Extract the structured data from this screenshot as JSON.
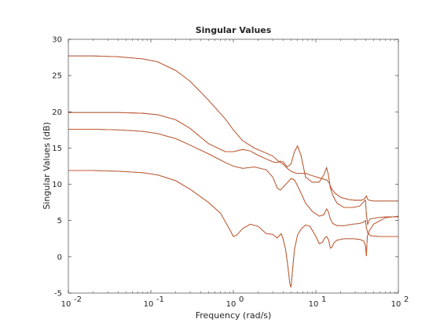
{
  "chart_data": {
    "type": "line",
    "title": "Singular Values",
    "xlabel": "Frequency (rad/s)",
    "ylabel": "Singular Values (dB)",
    "xscale": "log",
    "xlim": [
      0.01,
      100
    ],
    "ylim": [
      -5,
      30
    ],
    "xticks": [
      {
        "value": 0.01,
        "base": "10",
        "exp": "-2"
      },
      {
        "value": 0.1,
        "base": "10",
        "exp": "-1"
      },
      {
        "value": 1,
        "base": "10",
        "exp": "0"
      },
      {
        "value": 10,
        "base": "10",
        "exp": "1"
      },
      {
        "value": 100,
        "base": "10",
        "exp": "2"
      }
    ],
    "yticks": [
      {
        "value": -5,
        "label": "-5"
      },
      {
        "value": 0,
        "label": "0"
      },
      {
        "value": 5,
        "label": "5"
      },
      {
        "value": 10,
        "label": "10"
      },
      {
        "value": 15,
        "label": "15"
      },
      {
        "value": 20,
        "label": "20"
      },
      {
        "value": 25,
        "label": "25"
      },
      {
        "value": 30,
        "label": "30"
      }
    ],
    "grid": false,
    "box": true,
    "series_colors": [
      "#0072bd",
      "#d95319"
    ],
    "series": [
      {
        "color": "#d95319",
        "x": [
          0.01,
          0.02,
          0.04,
          0.08,
          0.12,
          0.2,
          0.3,
          0.5,
          0.8,
          1.0,
          1.3,
          1.8,
          2.5,
          3.0,
          3.6,
          4.0,
          4.5,
          5.0,
          5.5,
          6.0,
          6.6,
          7.5,
          9.0,
          11.0,
          12.5,
          13.5,
          14.5,
          15.5,
          17.0,
          20.0,
          25.0,
          30.0,
          35.0,
          38.0,
          40.0,
          41.0,
          42.0,
          44.0,
          50.0,
          60.0,
          80.0,
          100.0
        ],
        "y": [
          27.7,
          27.7,
          27.6,
          27.3,
          26.9,
          25.7,
          24.2,
          21.6,
          19.0,
          17.5,
          16.0,
          15.0,
          14.3,
          13.9,
          13.1,
          12.8,
          12.2,
          11.8,
          11.6,
          11.5,
          11.5,
          11.5,
          11.2,
          10.9,
          10.7,
          10.6,
          10.2,
          9.4,
          8.8,
          8.2,
          7.9,
          7.8,
          7.8,
          7.9,
          8.2,
          8.4,
          8.0,
          7.8,
          7.7,
          7.7,
          7.7,
          7.7
        ]
      },
      {
        "color": "#d95319",
        "x": [
          0.01,
          0.02,
          0.04,
          0.08,
          0.12,
          0.2,
          0.3,
          0.5,
          0.8,
          1.0,
          1.3,
          1.6,
          2.0,
          2.5,
          3.0,
          3.4,
          3.7,
          4.0,
          4.5,
          5.0,
          5.5,
          6.0,
          6.6,
          7.5,
          9.0,
          11.0,
          12.5,
          13.5,
          14.2,
          15.0,
          16.0,
          18.0,
          22.0,
          28.0,
          34.0,
          38.0,
          40.0,
          41.0,
          42.5,
          45.0,
          55.0,
          70.0,
          100.0
        ],
        "y": [
          19.9,
          19.9,
          19.9,
          19.8,
          19.6,
          18.9,
          17.7,
          15.6,
          14.5,
          14.5,
          14.8,
          14.6,
          14.0,
          13.5,
          13.1,
          13.0,
          13.2,
          13.1,
          12.4,
          12.8,
          14.5,
          15.3,
          14.0,
          11.0,
          10.3,
          10.3,
          11.3,
          12.3,
          11.3,
          9.5,
          8.5,
          7.4,
          6.8,
          6.8,
          7.0,
          7.6,
          7.8,
          5.8,
          4.5,
          5.2,
          5.4,
          5.5,
          5.5
        ]
      },
      {
        "color": "#d95319",
        "x": [
          0.01,
          0.02,
          0.04,
          0.08,
          0.12,
          0.2,
          0.3,
          0.5,
          0.8,
          1.0,
          1.3,
          1.8,
          2.5,
          3.0,
          3.4,
          3.7,
          4.0,
          4.5,
          5.0,
          5.5,
          6.0,
          6.6,
          7.5,
          9.0,
          11.0,
          12.5,
          13.5,
          14.2,
          15.0,
          16.0,
          18.0,
          22.0,
          28.0,
          34.0,
          38.0,
          40.0,
          41.0,
          42.5,
          46.0,
          60.0,
          100.0
        ],
        "y": [
          17.6,
          17.6,
          17.5,
          17.3,
          17.0,
          16.3,
          15.4,
          14.2,
          13.0,
          12.5,
          12.2,
          12.4,
          12.0,
          11.0,
          9.5,
          9.2,
          9.6,
          10.2,
          10.8,
          10.6,
          9.8,
          8.8,
          7.4,
          6.3,
          5.6,
          5.8,
          6.6,
          6.2,
          5.2,
          4.6,
          4.3,
          4.3,
          4.5,
          4.6,
          4.8,
          5.0,
          4.0,
          3.3,
          2.9,
          2.8,
          2.8
        ]
      },
      {
        "color": "#d95319",
        "x": [
          0.01,
          0.02,
          0.04,
          0.08,
          0.12,
          0.2,
          0.3,
          0.5,
          0.7,
          0.9,
          1.0,
          1.1,
          1.3,
          1.6,
          2.0,
          2.5,
          3.0,
          3.4,
          3.6,
          3.8,
          4.0,
          4.3,
          4.6,
          4.85,
          5.0,
          5.2,
          5.5,
          6.0,
          6.6,
          7.5,
          8.5,
          10.0,
          11.0,
          12.0,
          12.8,
          13.5,
          14.2,
          15.0,
          15.6,
          16.5,
          18.0,
          22.0,
          28.0,
          34.0,
          38.0,
          40.0,
          41.0,
          42.0,
          44.0,
          50.0,
          70.0,
          100.0
        ],
        "y": [
          11.9,
          11.9,
          11.8,
          11.6,
          11.3,
          10.5,
          9.3,
          7.5,
          6.0,
          3.8,
          2.8,
          3.0,
          3.9,
          4.5,
          4.2,
          3.2,
          3.1,
          2.6,
          2.9,
          3.2,
          2.5,
          1.0,
          -1.5,
          -3.8,
          -4.2,
          -2.0,
          1.0,
          3.0,
          3.8,
          4.4,
          4.2,
          2.8,
          1.8,
          2.0,
          2.6,
          2.8,
          2.4,
          1.2,
          1.3,
          1.9,
          2.3,
          2.5,
          2.5,
          2.4,
          2.2,
          1.5,
          0.1,
          2.8,
          3.5,
          4.5,
          5.4,
          5.6
        ]
      }
    ]
  }
}
